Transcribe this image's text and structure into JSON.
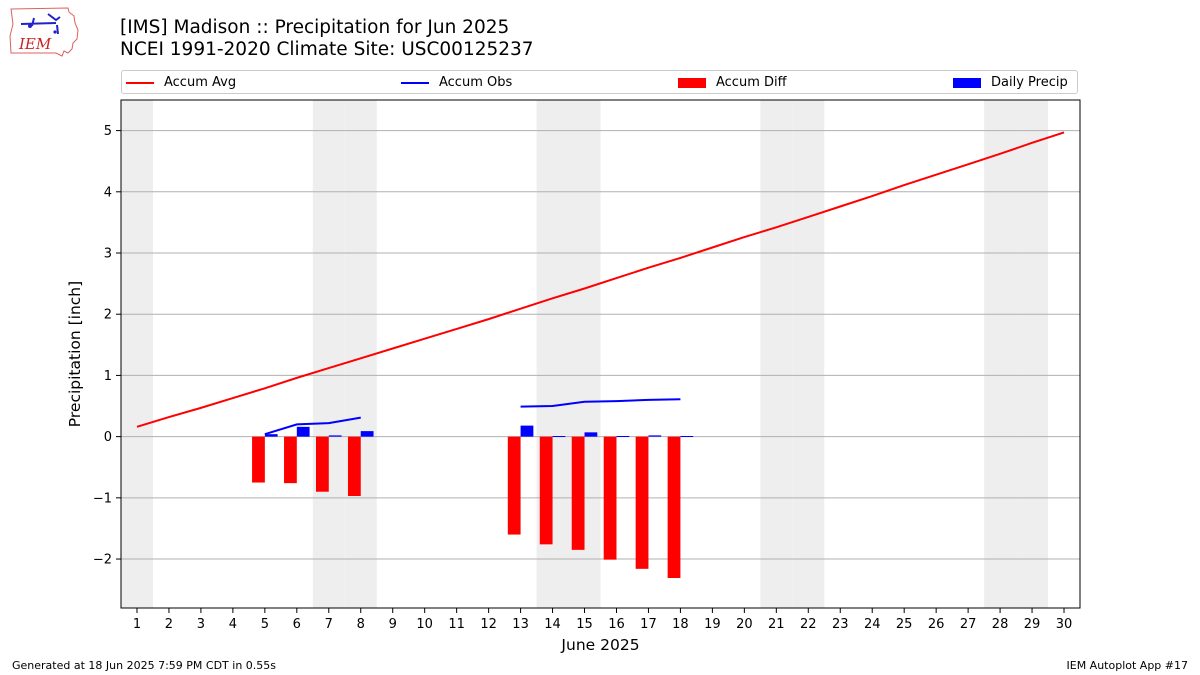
{
  "header": {
    "title_line1": "[IMS] Madison :: Precipitation for Jun 2025",
    "title_line2": "NCEI 1991-2020 Climate Site: USC00125237",
    "logo_text": "IEM"
  },
  "footer": {
    "generated": "Generated at 18 Jun 2025 7:59 PM CDT in 0.55s",
    "app": "IEM Autoplot App #17"
  },
  "colors": {
    "accum_avg": "#ff0000",
    "accum_obs": "#0000ff",
    "accum_diff": "#ff0000",
    "daily_precip": "#0000ff",
    "weekend_shade": "#eeeeee",
    "grid": "#b0b0b0"
  },
  "chart_data": {
    "type": "bar+line",
    "xlabel": "June 2025",
    "ylabel": "Precipitation [inch]",
    "xlim": [
      0.5,
      30.5
    ],
    "ylim": [
      -2.8,
      5.5
    ],
    "x_ticks": [
      1,
      2,
      3,
      4,
      5,
      6,
      7,
      8,
      9,
      10,
      11,
      12,
      13,
      14,
      15,
      16,
      17,
      18,
      19,
      20,
      21,
      22,
      23,
      24,
      25,
      26,
      27,
      28,
      29,
      30
    ],
    "y_ticks": [
      -2,
      -1,
      0,
      1,
      2,
      3,
      4,
      5
    ],
    "y_tick_labels": [
      "−2",
      "−1",
      "0",
      "1",
      "2",
      "3",
      "4",
      "5"
    ],
    "grid": "horizontal",
    "legend_position": "top",
    "weekend_days": [
      1,
      7,
      8,
      14,
      15,
      21,
      22,
      28,
      29
    ],
    "legend": [
      "Accum Avg",
      "Accum Obs",
      "Accum Diff",
      "Daily Precip"
    ],
    "series": [
      {
        "name": "Accum Avg",
        "kind": "line",
        "days": [
          1,
          2,
          3,
          4,
          5,
          6,
          7,
          8,
          9,
          10,
          11,
          12,
          13,
          14,
          15,
          16,
          17,
          18,
          19,
          20,
          21,
          22,
          23,
          24,
          25,
          26,
          27,
          28,
          29,
          30
        ],
        "values": [
          0.16,
          0.32,
          0.47,
          0.63,
          0.79,
          0.96,
          1.12,
          1.28,
          1.44,
          1.6,
          1.76,
          1.92,
          2.09,
          2.26,
          2.42,
          2.59,
          2.76,
          2.92,
          3.09,
          3.26,
          3.42,
          3.59,
          3.76,
          3.93,
          4.11,
          4.28,
          4.45,
          4.62,
          4.8,
          4.97
        ]
      },
      {
        "name": "Accum Obs",
        "kind": "line",
        "segments": [
          {
            "days": [
              5,
              6,
              7,
              8
            ],
            "values": [
              0.04,
              0.2,
              0.22,
              0.31
            ]
          },
          {
            "days": [
              13,
              14,
              15,
              16,
              17,
              18
            ],
            "values": [
              0.49,
              0.5,
              0.57,
              0.58,
              0.6,
              0.61
            ]
          }
        ]
      },
      {
        "name": "Accum Diff",
        "kind": "bar",
        "days": [
          5,
          6,
          7,
          8,
          13,
          14,
          15,
          16,
          17,
          18
        ],
        "values": [
          -0.75,
          -0.76,
          -0.9,
          -0.97,
          -1.6,
          -1.76,
          -1.85,
          -2.01,
          -2.16,
          -2.31
        ]
      },
      {
        "name": "Daily Precip",
        "kind": "bar",
        "days": [
          5,
          6,
          7,
          8,
          13,
          14,
          15,
          16,
          17,
          18
        ],
        "values": [
          0.04,
          0.16,
          0.02,
          0.09,
          0.18,
          0.01,
          0.07,
          0.01,
          0.02,
          0.01
        ]
      }
    ]
  }
}
